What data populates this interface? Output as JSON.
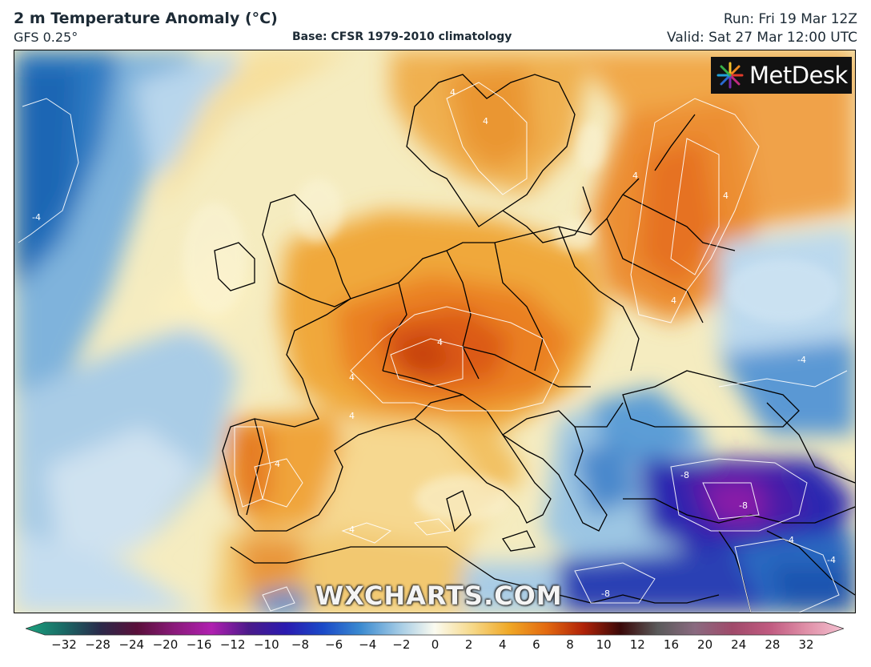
{
  "header": {
    "title": "2 m Temperature Anomaly (°C)",
    "model": "GFS 0.25°",
    "base": "Base: CFSR 1979-2010 climatology",
    "run": "Run: Fri 19 Mar 12Z",
    "valid": "Valid: Sat 27 Mar 12:00 UTC"
  },
  "logo": {
    "text": "MetDesk",
    "icon": "sunburst-icon"
  },
  "watermark": "WXCHARTS.COM",
  "contour_labels": [
    "4",
    "4",
    "4",
    "4",
    "4",
    "4",
    "4",
    "4",
    "4",
    "4",
    "-4",
    "-4",
    "-4",
    "-4",
    "-8",
    "-8",
    "-8"
  ],
  "colorbar": {
    "ticks": [
      "−32",
      "−28",
      "−24",
      "−20",
      "−16",
      "−12",
      "−10",
      "−8",
      "−6",
      "−4",
      "−2",
      "0",
      "2",
      "4",
      "6",
      "8",
      "10",
      "12",
      "16",
      "20",
      "24",
      "28",
      "32"
    ],
    "colors": [
      "#1aa37e",
      "#1a6b66",
      "#2a2a4a",
      "#5a0f3a",
      "#8a1a7a",
      "#b020b0",
      "#4a1a8a",
      "#2a1ab0",
      "#1a4ac8",
      "#3a8ad0",
      "#9ec8e4",
      "#fbfbf0",
      "#f6d98a",
      "#f0a826",
      "#e36a10",
      "#b02208",
      "#3a0808",
      "#5a5a5a",
      "#8a6a80",
      "#a04a6a",
      "#c05a80",
      "#e090a8",
      "#f4c0d0"
    ]
  }
}
